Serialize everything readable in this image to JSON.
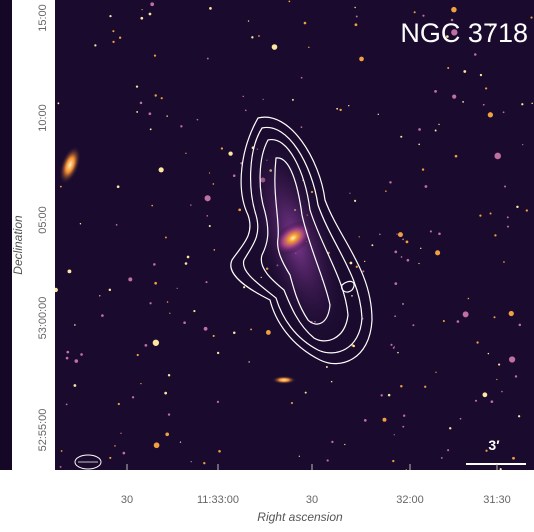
{
  "title": "NGC 3718",
  "x_axis": {
    "label": "Right ascension",
    "ticks": [
      "30",
      "11:33:00",
      "30",
      "32:00",
      "31:30"
    ]
  },
  "y_axis": {
    "label": "Declination",
    "ticks": [
      "15:00",
      "10:00",
      "05:00",
      "53:00:00",
      "52:55:00"
    ]
  },
  "scale_bar": "3′"
}
